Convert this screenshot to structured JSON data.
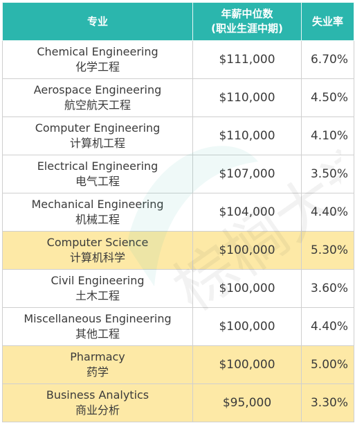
{
  "header": {
    "major": "专业",
    "salary_line1": "年薪中位数",
    "salary_line2": "(职业生涯中期)",
    "unemployment": "失业率"
  },
  "rows": [
    {
      "en": "Chemical Engineering",
      "zh": "化学工程",
      "salary": "$111,000",
      "rate": "6.70%",
      "highlight": false
    },
    {
      "en": "Aerospace Engineering",
      "zh": "航空航天工程",
      "salary": "$110,000",
      "rate": "4.50%",
      "highlight": false
    },
    {
      "en": "Computer Engineering",
      "zh": "计算机工程",
      "salary": "$110,000",
      "rate": "4.10%",
      "highlight": false
    },
    {
      "en": "Electrical Engineering",
      "zh": "电气工程",
      "salary": "$107,000",
      "rate": "3.50%",
      "highlight": false
    },
    {
      "en": "Mechanical Engineering",
      "zh": "机械工程",
      "salary": "$104,000",
      "rate": "4.40%",
      "highlight": false
    },
    {
      "en": "Computer Science",
      "zh": "计算机科学",
      "salary": "$100,000",
      "rate": "5.30%",
      "highlight": true
    },
    {
      "en": "Civil Engineering",
      "zh": "土木工程",
      "salary": "$100,000",
      "rate": "3.60%",
      "highlight": false
    },
    {
      "en": "Miscellaneous Engineering",
      "zh": "其他工程",
      "salary": "$100,000",
      "rate": "4.40%",
      "highlight": false
    },
    {
      "en": "Pharmacy",
      "zh": "药学",
      "salary": "$100,000",
      "rate": "5.00%",
      "highlight": true
    },
    {
      "en": "Business Analytics",
      "zh": "商业分析",
      "salary": "$95,000",
      "rate": "3.30%",
      "highlight": true
    }
  ],
  "watermark": "棕榈大道",
  "colors": {
    "header_bg": "#2bb6ad",
    "highlight_bg": "#fde9a6",
    "border": "#cfcfcf"
  }
}
